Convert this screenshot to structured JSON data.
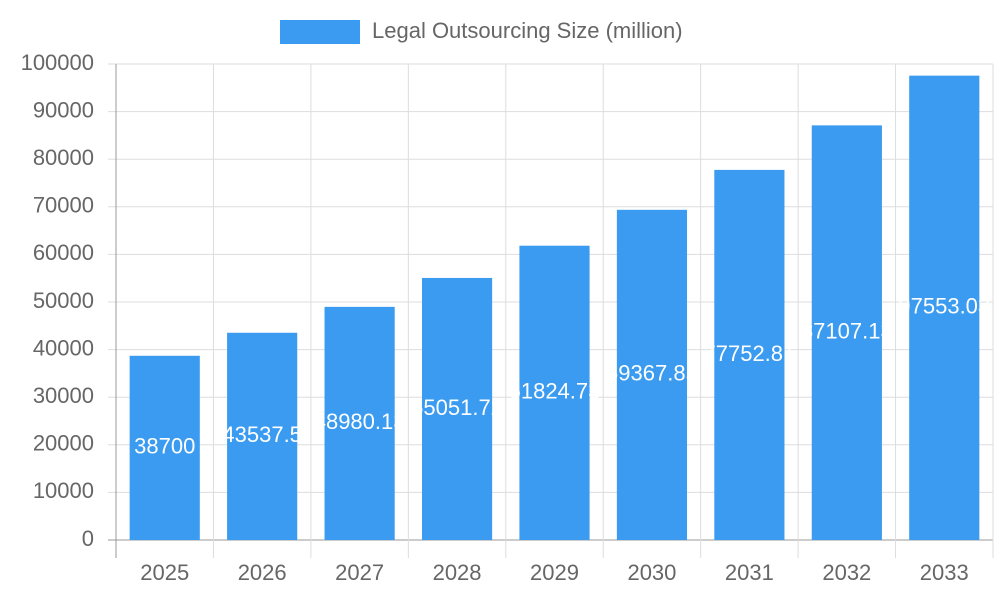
{
  "chart_data": {
    "type": "bar",
    "legend": "Legal Outsourcing Size (million)",
    "color": "#3a9bf0",
    "categories": [
      "2025",
      "2026",
      "2027",
      "2028",
      "2029",
      "2030",
      "2031",
      "2032",
      "2033"
    ],
    "values": [
      38700,
      43537.5,
      48980.13,
      55051.72,
      61824.73,
      69367.85,
      77752.81,
      87107.13,
      97553.03
    ],
    "ylim": [
      0,
      100000
    ],
    "yticks": [
      0,
      10000,
      20000,
      30000,
      40000,
      50000,
      60000,
      70000,
      80000,
      90000,
      100000
    ],
    "grid": true
  }
}
